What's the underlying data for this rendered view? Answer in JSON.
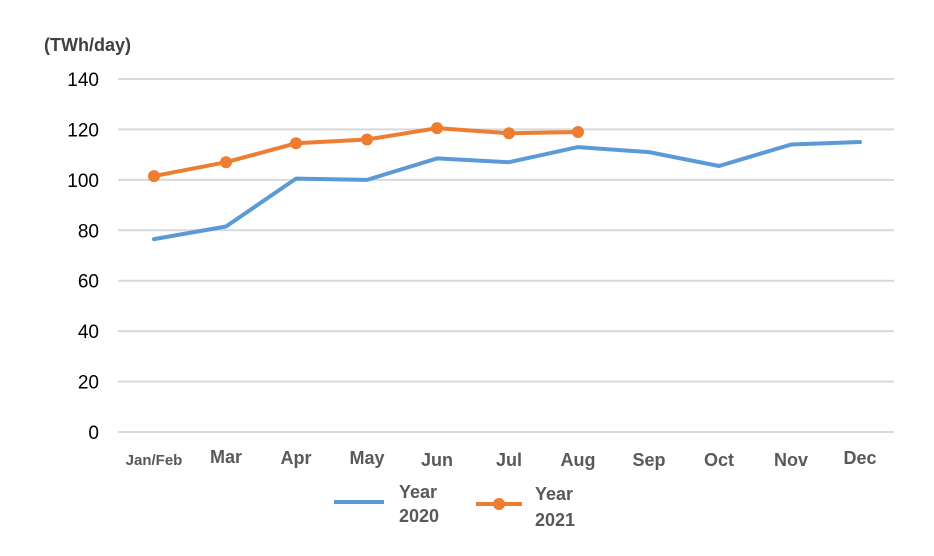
{
  "chart_data": {
    "type": "line",
    "unit_label": "(TWh/day)",
    "title": "",
    "xlabel": "",
    "ylabel": "",
    "categories": [
      "Jan/Feb",
      "Mar",
      "Apr",
      "May",
      "Jun",
      "Jul",
      "Aug",
      "Sep",
      "Oct",
      "Nov",
      "Dec"
    ],
    "ylim": [
      0,
      140
    ],
    "yticks": [
      0,
      20,
      40,
      60,
      80,
      100,
      120,
      140
    ],
    "grid": true,
    "legend_placement": "bottom-center",
    "series": [
      {
        "name_line1": "Year",
        "name_line2": "2020",
        "color": "#5b9bd5",
        "markers": false,
        "values": [
          76.5,
          81.5,
          100.5,
          100,
          108.5,
          107,
          113,
          111,
          105.5,
          114,
          115
        ]
      },
      {
        "name_line1": "Year",
        "name_line2": "2021",
        "color": "#ed7d31",
        "markers": true,
        "values": [
          101.5,
          107,
          114.5,
          116,
          120.5,
          118.5,
          119,
          null,
          null,
          null,
          null
        ]
      }
    ]
  }
}
